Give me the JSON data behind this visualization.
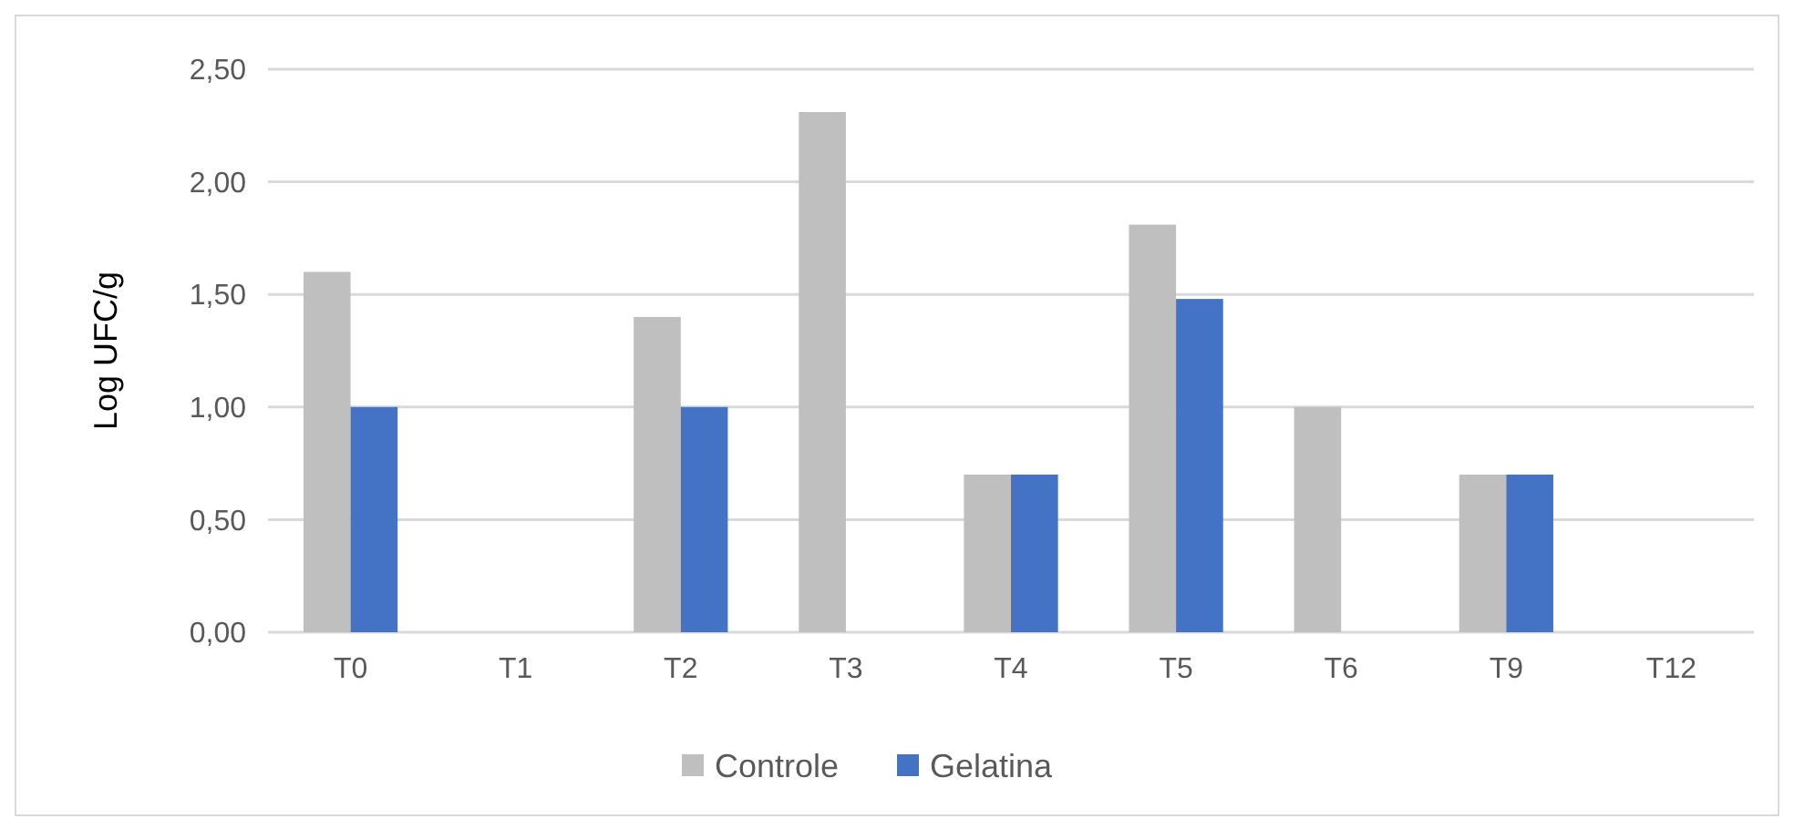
{
  "chart_data": {
    "type": "bar",
    "ylabel": "Log UFC/g",
    "categories": [
      "T0",
      "T1",
      "T2",
      "T3",
      "T4",
      "T5",
      "T6",
      "T9",
      "T12"
    ],
    "series": [
      {
        "name": "Controle",
        "color": "#bfbfbf",
        "values": [
          1.6,
          0,
          1.4,
          2.31,
          0.7,
          1.81,
          1.0,
          0.7,
          0
        ]
      },
      {
        "name": "Gelatina",
        "color": "#4472c4",
        "values": [
          1.0,
          0,
          1.0,
          0,
          0.7,
          1.48,
          0,
          0.7,
          0
        ]
      }
    ],
    "ylim": [
      0,
      2.5
    ],
    "yticks": [
      {
        "value": 0,
        "label": "0,00"
      },
      {
        "value": 0.5,
        "label": "0,50"
      },
      {
        "value": 1,
        "label": "1,00"
      },
      {
        "value": 1.5,
        "label": "1,50"
      },
      {
        "value": 2,
        "label": "2,00"
      },
      {
        "value": 2.5,
        "label": "2,50"
      }
    ],
    "grid": "y",
    "legend": "bottom"
  }
}
